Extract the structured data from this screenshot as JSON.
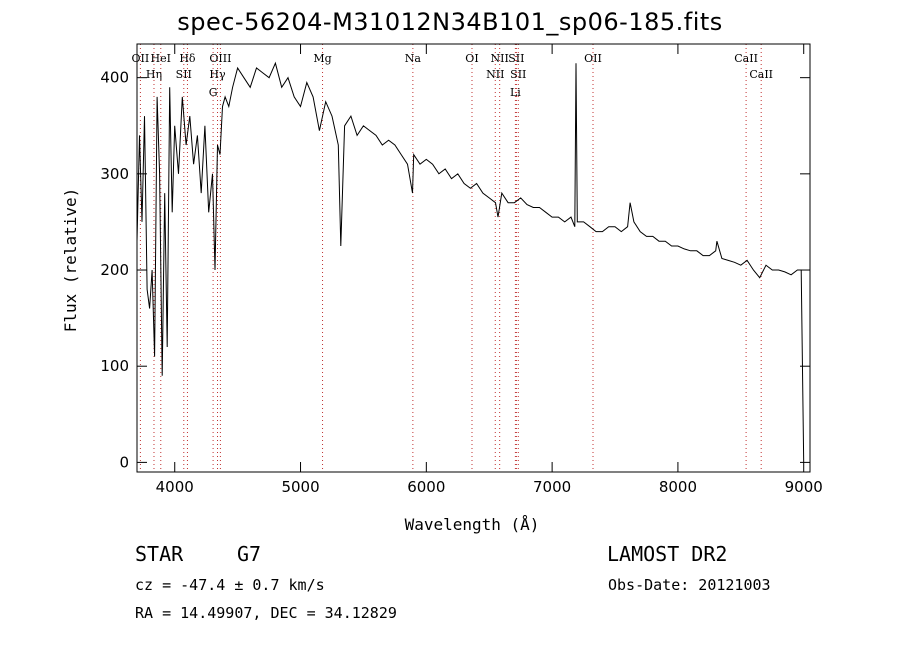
{
  "header": {
    "title": "spec-56204-M31012N34B101_sp06-185.fits"
  },
  "info": {
    "object_class": "STAR",
    "subclass": "G7",
    "survey": "LAMOST DR2",
    "velocity": "cz = -47.4 ± 0.7 km/s",
    "obs_date": "Obs-Date: 20121003",
    "coords": "RA =  14.49907, DEC =  34.12829"
  },
  "chart_data": {
    "type": "line",
    "title": "spec-56204-M31012N34B101_sp06-185.fits",
    "xlabel": "Wavelength (Å)",
    "ylabel": "Flux (relative)",
    "xlim": [
      3700,
      9050
    ],
    "ylim": [
      -10,
      435
    ],
    "xticks": [
      4000,
      5000,
      6000,
      7000,
      8000,
      9000
    ],
    "yticks": [
      0,
      100,
      200,
      300,
      400
    ],
    "grid": false,
    "colors": {
      "line": "#000000",
      "marker": "#c03030",
      "axes": "#000000"
    },
    "series": [
      {
        "x": [
          3700,
          3720,
          3740,
          3760,
          3780,
          3800,
          3820,
          3840,
          3860,
          3880,
          3900,
          3920,
          3940,
          3960,
          3980,
          4000,
          4030,
          4060,
          4090,
          4120,
          4150,
          4180,
          4210,
          4240,
          4270,
          4300,
          4320,
          4340,
          4360,
          4380,
          4400,
          4430,
          4460,
          4500,
          4550,
          4600,
          4650,
          4700,
          4750,
          4800,
          4850,
          4900,
          4950,
          5000,
          5050,
          5100,
          5150,
          5200,
          5250,
          5300,
          5320,
          5350,
          5400,
          5450,
          5500,
          5550,
          5600,
          5650,
          5700,
          5750,
          5800,
          5850,
          5890,
          5900,
          5950,
          6000,
          6050,
          6100,
          6150,
          6200,
          6250,
          6300,
          6350,
          6400,
          6450,
          6500,
          6550,
          6570,
          6600,
          6650,
          6700,
          6750,
          6800,
          6850,
          6900,
          6950,
          7000,
          7050,
          7100,
          7150,
          7180,
          7190,
          7200,
          7250,
          7300,
          7350,
          7400,
          7450,
          7500,
          7550,
          7600,
          7620,
          7650,
          7700,
          7750,
          7800,
          7850,
          7900,
          7950,
          8000,
          8050,
          8100,
          8150,
          8200,
          8250,
          8300,
          8310,
          8350,
          8400,
          8450,
          8500,
          8550,
          8600,
          8650,
          8700,
          8750,
          8800,
          8850,
          8900,
          8950,
          8980,
          9000
        ],
        "y": [
          230,
          340,
          250,
          360,
          180,
          160,
          200,
          110,
          380,
          300,
          90,
          280,
          120,
          390,
          260,
          350,
          300,
          380,
          330,
          360,
          310,
          340,
          280,
          350,
          260,
          300,
          200,
          330,
          320,
          370,
          380,
          370,
          390,
          410,
          400,
          390,
          410,
          405,
          400,
          415,
          390,
          400,
          380,
          370,
          395,
          380,
          345,
          375,
          360,
          330,
          225,
          350,
          360,
          340,
          350,
          345,
          340,
          330,
          335,
          330,
          320,
          310,
          280,
          320,
          310,
          315,
          310,
          300,
          305,
          295,
          300,
          290,
          285,
          290,
          280,
          275,
          270,
          255,
          280,
          270,
          270,
          275,
          268,
          265,
          265,
          260,
          255,
          255,
          250,
          255,
          245,
          415,
          250,
          250,
          245,
          240,
          240,
          245,
          245,
          240,
          245,
          270,
          250,
          240,
          235,
          235,
          230,
          230,
          225,
          225,
          222,
          220,
          220,
          215,
          215,
          220,
          230,
          212,
          210,
          208,
          205,
          210,
          200,
          192,
          205,
          200,
          200,
          198,
          195,
          200,
          200,
          0
        ]
      }
    ],
    "lines": [
      {
        "label": "OII",
        "wl": 3727
      },
      {
        "label": "Hη",
        "wl": 3835
      },
      {
        "label": "HeI",
        "wl": 3889
      },
      {
        "label": "Hδ",
        "wl": 4101
      },
      {
        "label": "SII",
        "wl": 4072
      },
      {
        "label": "OIII",
        "wl": 4363
      },
      {
        "label": "Hγ",
        "wl": 4340
      },
      {
        "label": "G",
        "wl": 4305
      },
      {
        "label": "Mg",
        "wl": 5175
      },
      {
        "label": "Na",
        "wl": 5893
      },
      {
        "label": "OI",
        "wl": 6363
      },
      {
        "label": "NII",
        "wl": 6583
      },
      {
        "label": "NII",
        "wl": 6548
      },
      {
        "label": "SII",
        "wl": 6716
      },
      {
        "label": "SII",
        "wl": 6731
      },
      {
        "label": "Li",
        "wl": 6708
      },
      {
        "label": "OII",
        "wl": 7325
      },
      {
        "label": "CaII",
        "wl": 8542
      },
      {
        "label": "CaII",
        "wl": 8662
      }
    ]
  }
}
